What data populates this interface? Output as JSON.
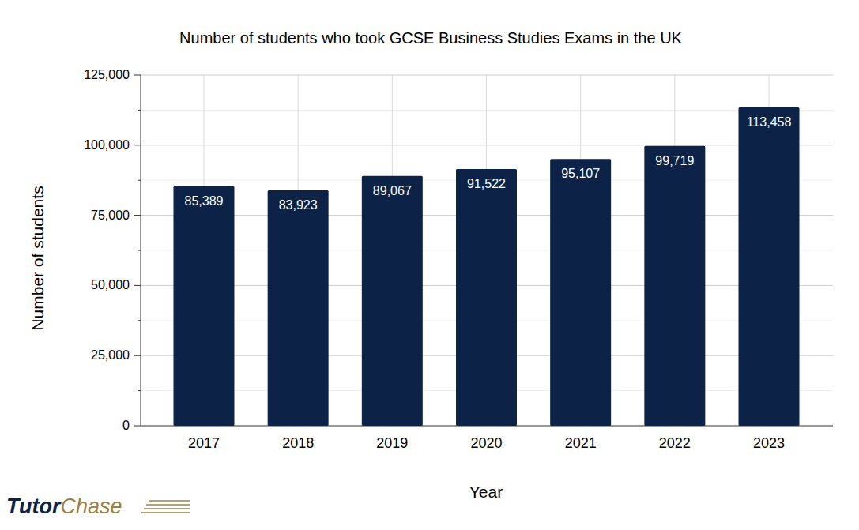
{
  "chart_data": {
    "type": "bar",
    "title": "Number of students who took GCSE Business Studies Exams in the UK",
    "x_label": "Year",
    "y_label": "Number of students",
    "categories": [
      "2017",
      "2018",
      "2019",
      "2020",
      "2021",
      "2022",
      "2023"
    ],
    "values": [
      85389,
      83923,
      89067,
      91522,
      95107,
      99719,
      113458
    ],
    "value_labels": [
      "85,389",
      "83,923",
      "89,067",
      "91,522",
      "95,107",
      "99,719",
      "113,458"
    ],
    "color": "#0c2347",
    "ylim": [
      0,
      125000
    ],
    "yticks": [
      0,
      {
        "value": 25000,
        "label": "25,000"
      },
      {
        "value": 50000,
        "label": "50,000"
      },
      {
        "value": 75000,
        "label": "75,000"
      },
      {
        "value": 100000,
        "label": "100,000"
      },
      {
        "value": 125000,
        "label": "125,000"
      }
    ],
    "grid": true,
    "data_labels": true
  },
  "logo": {
    "parts": [
      "Tutor",
      "Chase"
    ]
  }
}
